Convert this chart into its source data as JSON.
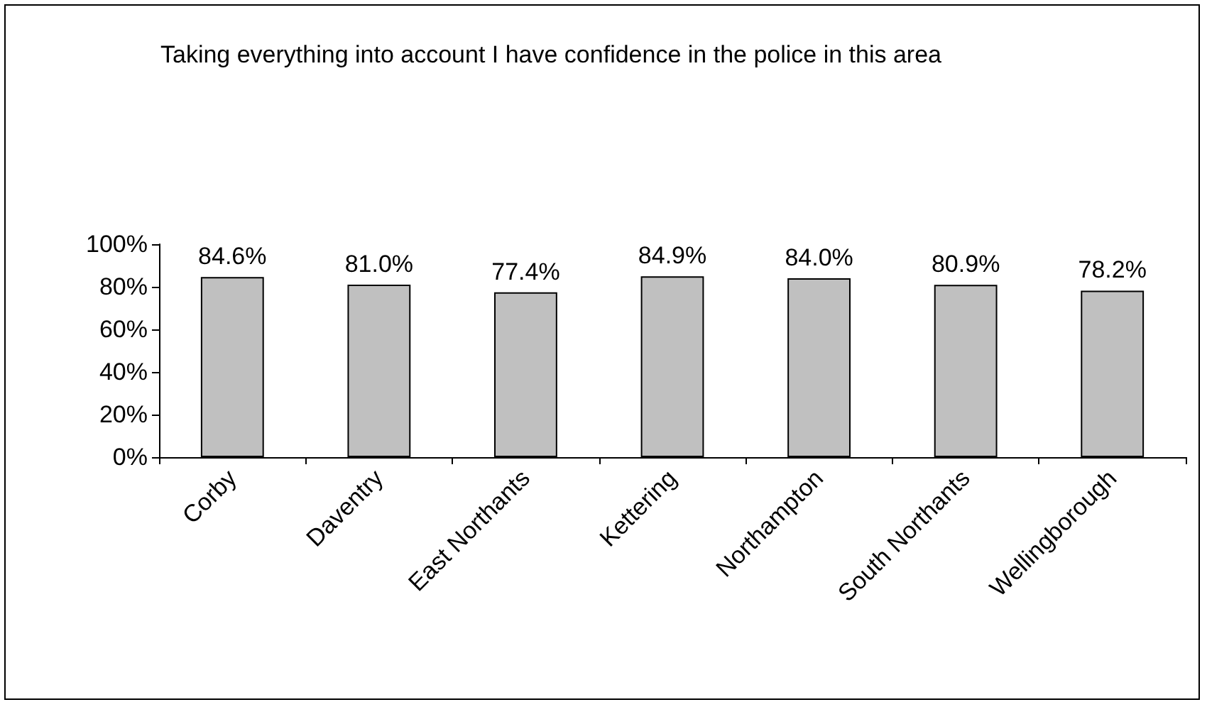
{
  "chart_data": {
    "type": "bar",
    "title": "Taking everything into account I have confidence in the police in this area",
    "categories": [
      "Corby",
      "Daventry",
      "East Northants",
      "Kettering",
      "Northampton",
      "South Northants",
      "Wellingborough"
    ],
    "values": [
      84.6,
      81.0,
      77.4,
      84.9,
      84.0,
      80.9,
      78.2
    ],
    "value_labels": [
      "84.6%",
      "81.0%",
      "77.4%",
      "84.9%",
      "84.0%",
      "80.9%",
      "78.2%"
    ],
    "color": "#c0c0c0",
    "ylim": [
      0,
      100
    ],
    "yticks": [
      {
        "value": 0,
        "label": "0%"
      },
      {
        "value": 20,
        "label": "20%"
      },
      {
        "value": 40,
        "label": "40%"
      },
      {
        "value": 60,
        "label": "60%"
      },
      {
        "value": 80,
        "label": "80%"
      },
      {
        "value": 100,
        "label": "100%"
      }
    ],
    "grid": false
  }
}
